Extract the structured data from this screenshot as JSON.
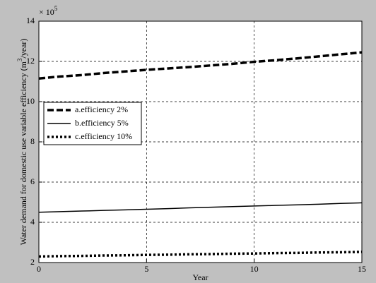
{
  "chart_data": {
    "type": "line",
    "xlabel": "Year",
    "ylabel": [
      "Water demand for domestic use variable efficiency (m",
      "3",
      "/year)"
    ],
    "multiplier": [
      "× 10",
      "5"
    ],
    "x": [
      0,
      1,
      2,
      3,
      4,
      5,
      6,
      7,
      8,
      9,
      10,
      11,
      12,
      13,
      14,
      15
    ],
    "series": [
      {
        "name": "a.efficiency 2%",
        "color": "#000000",
        "style": "dashed",
        "values": [
          11.15,
          11.25,
          11.32,
          11.42,
          11.5,
          11.58,
          11.65,
          11.72,
          11.8,
          11.88,
          11.98,
          12.06,
          12.15,
          12.25,
          12.35,
          12.45
        ]
      },
      {
        "name": "b.efficiency 5%",
        "color": "#000000",
        "style": "solid",
        "values": [
          4.5,
          4.53,
          4.56,
          4.59,
          4.62,
          4.65,
          4.68,
          4.72,
          4.75,
          4.78,
          4.81,
          4.84,
          4.87,
          4.9,
          4.94,
          4.97
        ]
      },
      {
        "name": "c.efficiency 10%",
        "color": "#000000",
        "style": "dotted",
        "values": [
          2.3,
          2.32,
          2.33,
          2.35,
          2.36,
          2.38,
          2.39,
          2.41,
          2.42,
          2.44,
          2.45,
          2.47,
          2.48,
          2.5,
          2.51,
          2.53
        ]
      }
    ],
    "xlim": [
      0,
      15
    ],
    "xticks": [
      0,
      5,
      10,
      15
    ],
    "ylim": [
      2,
      14
    ],
    "yticks": [
      2,
      4,
      6,
      8,
      10,
      12,
      14
    ],
    "grid": true,
    "legend": "left"
  }
}
